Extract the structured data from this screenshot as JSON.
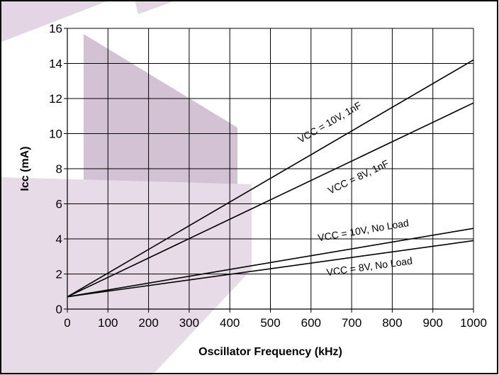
{
  "chart_data": {
    "type": "line",
    "xlabel": "Oscillator  Frequency  (kHz)",
    "ylabel": "Icc (mA)",
    "xlim": [
      0,
      1000
    ],
    "ylim": [
      0,
      16
    ],
    "x_ticks": [
      0,
      100,
      200,
      300,
      400,
      500,
      600,
      700,
      800,
      900,
      1000
    ],
    "y_ticks": [
      0,
      2,
      4,
      6,
      8,
      10,
      12,
      14,
      16
    ],
    "grid": true,
    "series": [
      {
        "name": "VCC = 10V, 1nF",
        "x": [
          0,
          1000
        ],
        "y": [
          0.7,
          14.2
        ],
        "label_at": 650,
        "label_y_offset": 1.0
      },
      {
        "name": "VCC = 8V, 1nF",
        "x": [
          0,
          1000
        ],
        "y": [
          0.7,
          11.75
        ],
        "label_at": 720,
        "label_y_offset": -1.3
      },
      {
        "name": "VCC = 10V, No Load",
        "x": [
          0,
          1000
        ],
        "y": [
          0.7,
          4.6
        ],
        "label_at": 730,
        "label_y_offset": 0.75
      },
      {
        "name": "VCC = 8V, No Load",
        "x": [
          0,
          1000
        ],
        "y": [
          0.7,
          3.9
        ],
        "label_at": 745,
        "label_y_offset": -0.85
      }
    ],
    "watermark_color": "#e3d5e3",
    "line_color": "#000000"
  }
}
